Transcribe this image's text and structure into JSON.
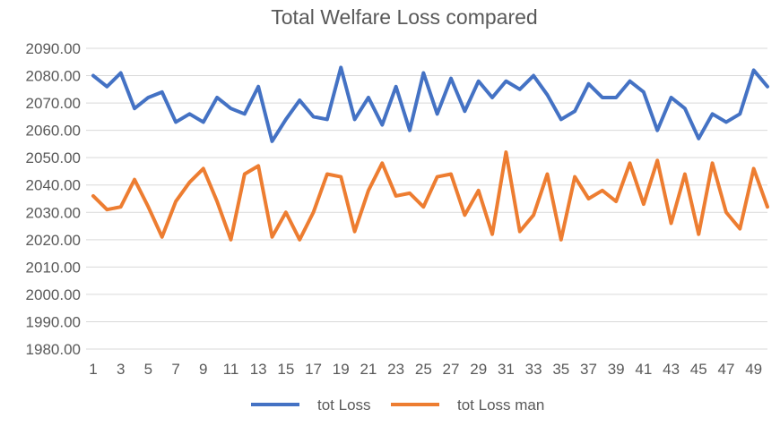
{
  "chart_data": {
    "type": "line",
    "title": "Total Welfare Loss compared",
    "xlabel": "",
    "ylabel": "",
    "ylim": [
      1980,
      2090
    ],
    "ystep": 10,
    "y_tick_labels": [
      "1980.00",
      "1990.00",
      "2000.00",
      "2010.00",
      "2020.00",
      "2030.00",
      "2040.00",
      "2050.00",
      "2060.00",
      "2070.00",
      "2080.00",
      "2090.00"
    ],
    "x": [
      1,
      2,
      3,
      4,
      5,
      6,
      7,
      8,
      9,
      10,
      11,
      12,
      13,
      14,
      15,
      16,
      17,
      18,
      19,
      20,
      21,
      22,
      23,
      24,
      25,
      26,
      27,
      28,
      29,
      30,
      31,
      32,
      33,
      34,
      35,
      36,
      37,
      38,
      39,
      40,
      41,
      42,
      43,
      44,
      45,
      46,
      47,
      48,
      49,
      50
    ],
    "x_tick_labels": [
      "1",
      "3",
      "5",
      "7",
      "9",
      "11",
      "13",
      "15",
      "17",
      "19",
      "21",
      "23",
      "25",
      "27",
      "29",
      "31",
      "33",
      "35",
      "37",
      "39",
      "41",
      "43",
      "45",
      "47",
      "49"
    ],
    "grid": true,
    "legend_position": "bottom",
    "series": [
      {
        "name": "tot Loss",
        "color": "#4472C4",
        "values": [
          2080,
          2076,
          2081,
          2068,
          2072,
          2074,
          2063,
          2066,
          2063,
          2072,
          2068,
          2066,
          2076,
          2056,
          2064,
          2071,
          2065,
          2064,
          2083,
          2064,
          2072,
          2062,
          2076,
          2060,
          2081,
          2066,
          2079,
          2067,
          2078,
          2072,
          2078,
          2075,
          2080,
          2073,
          2064,
          2067,
          2077,
          2072,
          2072,
          2078,
          2074,
          2060,
          2072,
          2068,
          2057,
          2066,
          2063,
          2066,
          2082,
          2076
        ]
      },
      {
        "name": "tot Loss man",
        "color": "#ED7D31",
        "values": [
          2036,
          2031,
          2032,
          2042,
          2032,
          2021,
          2034,
          2041,
          2046,
          2034,
          2020,
          2044,
          2047,
          2021,
          2030,
          2020,
          2030,
          2044,
          2043,
          2023,
          2038,
          2048,
          2036,
          2037,
          2032,
          2043,
          2044,
          2029,
          2038,
          2022,
          2052,
          2023,
          2029,
          2044,
          2020,
          2043,
          2035,
          2038,
          2034,
          2048,
          2033,
          2049,
          2026,
          2044,
          2022,
          2048,
          2030,
          2024,
          2046,
          2032
        ]
      }
    ]
  }
}
